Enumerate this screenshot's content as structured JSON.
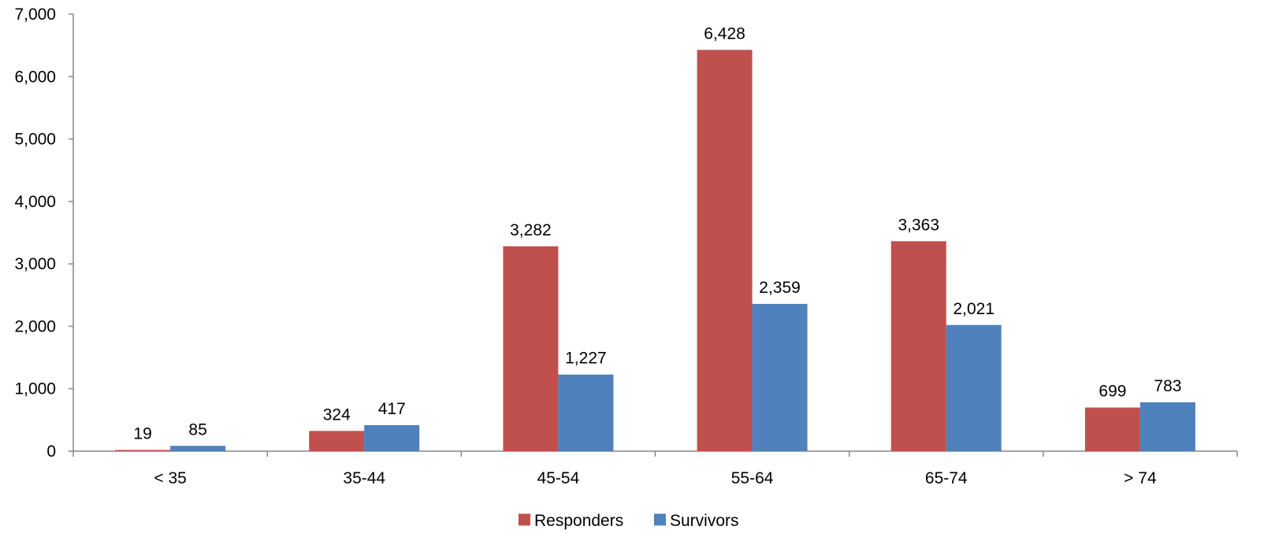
{
  "chart_data": {
    "type": "bar",
    "title": "",
    "xlabel": "",
    "ylabel": "",
    "categories": [
      "< 35",
      "35-44",
      "45-54",
      "55-64",
      "65-74",
      "> 74"
    ],
    "series": [
      {
        "name": "Responders",
        "color": "#C0504D",
        "values": [
          19,
          324,
          3282,
          6428,
          3363,
          699
        ]
      },
      {
        "name": "Survivors",
        "color": "#4F81BD",
        "values": [
          85,
          417,
          1227,
          2359,
          2021,
          783
        ]
      }
    ],
    "data_labels": {
      "Responders": [
        "19",
        "324",
        "3,282",
        "6,428",
        "3,363",
        "699"
      ],
      "Survivors": [
        "85",
        "417",
        "1,227",
        "2,359",
        "2,021",
        "783"
      ]
    },
    "ylim": [
      0,
      7000
    ],
    "y_ticks": [
      0,
      1000,
      2000,
      3000,
      4000,
      5000,
      6000,
      7000
    ],
    "y_tick_labels": [
      "0",
      "1,000",
      "2,000",
      "3,000",
      "4,000",
      "5,000",
      "6,000",
      "7,000"
    ],
    "grid": false,
    "legend_position": "bottom"
  }
}
